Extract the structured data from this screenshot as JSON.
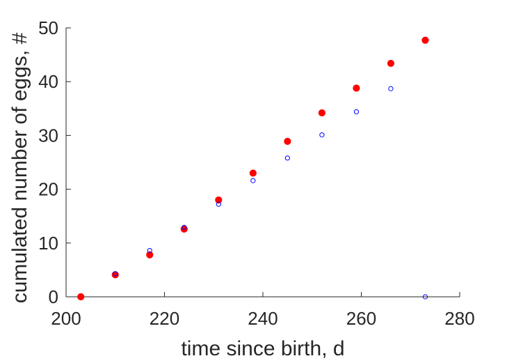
{
  "chart_data": {
    "type": "scatter",
    "xlabel": "time since birth, d",
    "ylabel": "cumulated number of eggs, #",
    "xlim": [
      200,
      280
    ],
    "ylim": [
      0,
      50
    ],
    "xticks": [
      200,
      220,
      240,
      260,
      280
    ],
    "yticks": [
      0,
      10,
      20,
      30,
      40,
      50
    ],
    "xtick_labels": [
      "200",
      "220",
      "240",
      "260",
      "280"
    ],
    "ytick_labels": [
      "0",
      "10",
      "20",
      "30",
      "40",
      "50"
    ],
    "grid": false,
    "series": [
      {
        "marker": "filled-circle",
        "color": "#ff0000",
        "x": [
          203,
          210,
          217,
          224,
          231,
          238,
          245,
          252,
          259,
          266,
          273
        ],
        "y": [
          0,
          4.1,
          7.8,
          12.6,
          18.0,
          23.0,
          28.9,
          34.2,
          38.8,
          43.4,
          47.7
        ]
      },
      {
        "marker": "open-circle",
        "color": "#0000ff",
        "x": [
          210,
          217,
          224,
          231,
          238,
          245,
          252,
          259,
          266,
          273
        ],
        "y": [
          4.3,
          8.6,
          12.9,
          17.2,
          21.6,
          25.8,
          30.1,
          34.4,
          38.7,
          0
        ]
      }
    ]
  }
}
